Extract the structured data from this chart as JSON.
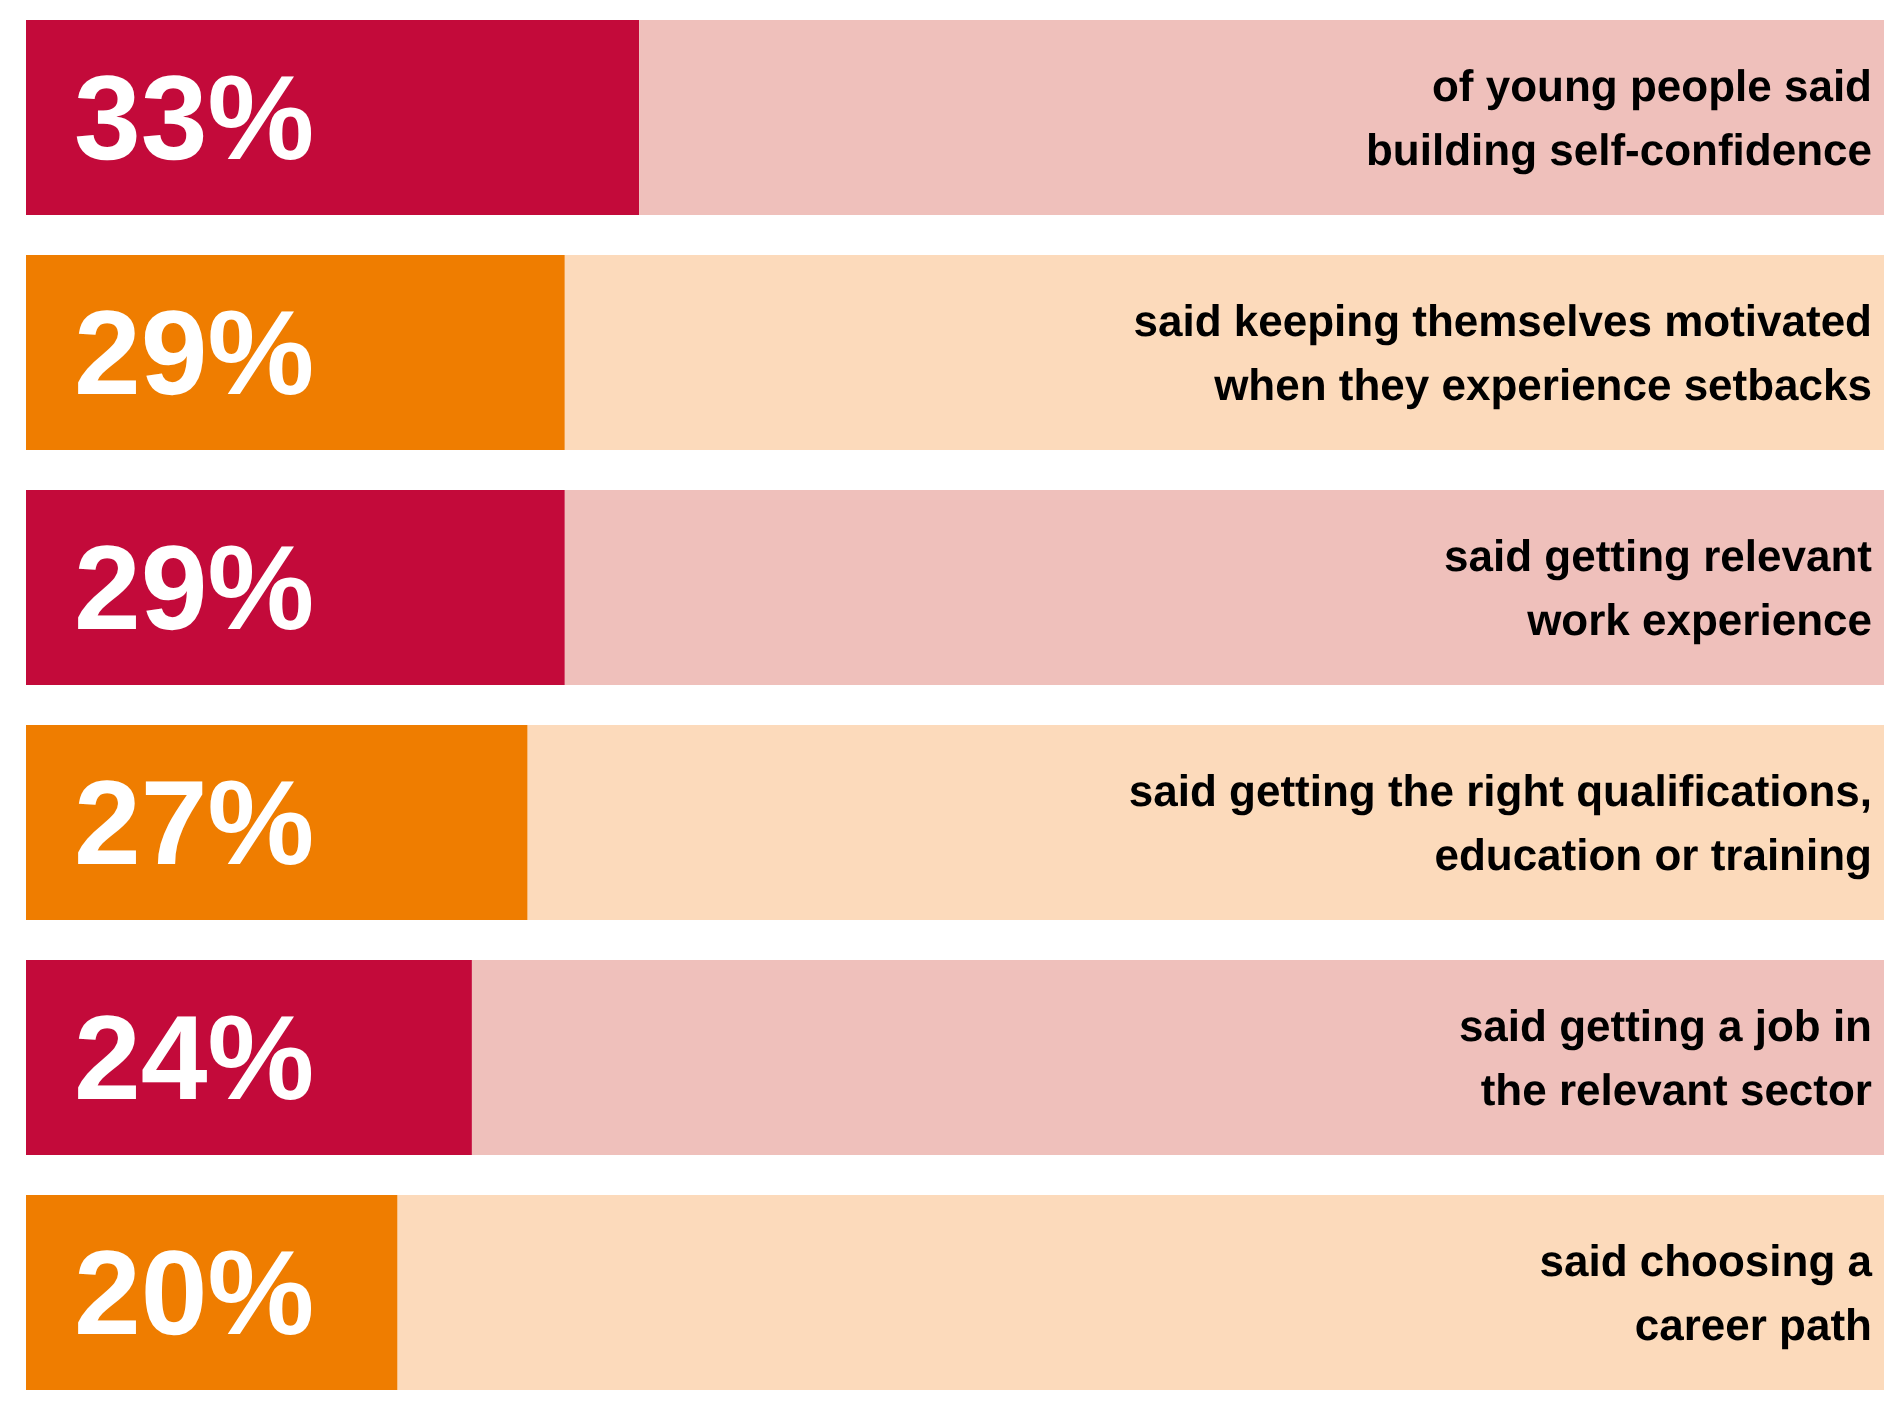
{
  "chart_data": {
    "type": "bar",
    "orientation": "horizontal",
    "stacked": true,
    "categories": [
      "of young people said\nbuilding self-confidence",
      "said keeping themselves motivated\nwhen they experience setbacks",
      "said getting relevant\nwork experience",
      "said getting the right qualifications,\neducation or training",
      "said getting a job in\nthe relevant sector",
      "said choosing a\ncareer path"
    ],
    "series": [
      {
        "values": [
          33,
          29,
          29,
          27,
          24,
          20
        ],
        "colors": [
          "#c30a3a",
          "#ef7d00",
          "#c30a3a",
          "#ef7d00",
          "#c30a3a",
          "#ef7d00"
        ],
        "value_labels": [
          "33%",
          "29%",
          "29%",
          "27%",
          "24%",
          "20%"
        ]
      },
      {
        "values": [
          67,
          71,
          71,
          73,
          76,
          80
        ],
        "colors": [
          "#efc0bb",
          "#fcdabb",
          "#efc0bb",
          "#fcdabb",
          "#efc0bb",
          "#fcdabb"
        ]
      }
    ],
    "xlim": [
      0,
      100
    ],
    "tick_labels": "y"
  }
}
